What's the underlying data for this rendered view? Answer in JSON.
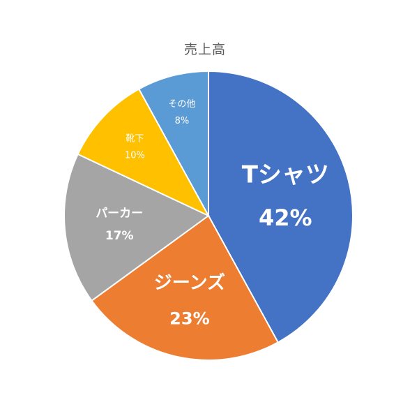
{
  "chart_data": {
    "type": "pie",
    "title": "売上高",
    "categories": [
      "Tシャツ",
      "ジーンズ",
      "パーカー",
      "靴下",
      "その他"
    ],
    "values": [
      42,
      23,
      17,
      10,
      8
    ],
    "value_labels": [
      "42%",
      "23%",
      "17%",
      "10%",
      "8%"
    ],
    "colors": [
      "#4472C4",
      "#ED7D31",
      "#A5A5A5",
      "#FFC000",
      "#5B9BD5"
    ],
    "start_angle": "12 o'clock",
    "direction": "clockwise",
    "legend": "none",
    "label_position": "inside"
  }
}
